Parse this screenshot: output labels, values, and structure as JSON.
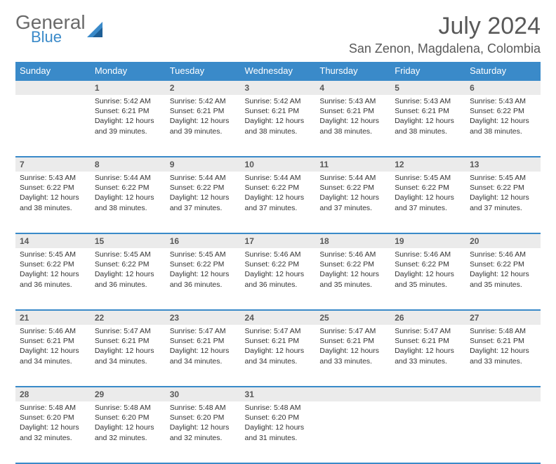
{
  "brand": {
    "line1": "General",
    "line2": "Blue"
  },
  "title": "July 2024",
  "location": "San Zenon, Magdalena, Colombia",
  "colors": {
    "accent": "#3a8ac9",
    "shade": "#ebebeb",
    "text": "#595959"
  },
  "weekdays": [
    "Sunday",
    "Monday",
    "Tuesday",
    "Wednesday",
    "Thursday",
    "Friday",
    "Saturday"
  ],
  "startOffset": 1,
  "days": [
    {
      "n": "1",
      "sunrise": "5:42 AM",
      "sunset": "6:21 PM",
      "dl": "12 hours and 39 minutes."
    },
    {
      "n": "2",
      "sunrise": "5:42 AM",
      "sunset": "6:21 PM",
      "dl": "12 hours and 39 minutes."
    },
    {
      "n": "3",
      "sunrise": "5:42 AM",
      "sunset": "6:21 PM",
      "dl": "12 hours and 38 minutes."
    },
    {
      "n": "4",
      "sunrise": "5:43 AM",
      "sunset": "6:21 PM",
      "dl": "12 hours and 38 minutes."
    },
    {
      "n": "5",
      "sunrise": "5:43 AM",
      "sunset": "6:21 PM",
      "dl": "12 hours and 38 minutes."
    },
    {
      "n": "6",
      "sunrise": "5:43 AM",
      "sunset": "6:22 PM",
      "dl": "12 hours and 38 minutes."
    },
    {
      "n": "7",
      "sunrise": "5:43 AM",
      "sunset": "6:22 PM",
      "dl": "12 hours and 38 minutes."
    },
    {
      "n": "8",
      "sunrise": "5:44 AM",
      "sunset": "6:22 PM",
      "dl": "12 hours and 38 minutes."
    },
    {
      "n": "9",
      "sunrise": "5:44 AM",
      "sunset": "6:22 PM",
      "dl": "12 hours and 37 minutes."
    },
    {
      "n": "10",
      "sunrise": "5:44 AM",
      "sunset": "6:22 PM",
      "dl": "12 hours and 37 minutes."
    },
    {
      "n": "11",
      "sunrise": "5:44 AM",
      "sunset": "6:22 PM",
      "dl": "12 hours and 37 minutes."
    },
    {
      "n": "12",
      "sunrise": "5:45 AM",
      "sunset": "6:22 PM",
      "dl": "12 hours and 37 minutes."
    },
    {
      "n": "13",
      "sunrise": "5:45 AM",
      "sunset": "6:22 PM",
      "dl": "12 hours and 37 minutes."
    },
    {
      "n": "14",
      "sunrise": "5:45 AM",
      "sunset": "6:22 PM",
      "dl": "12 hours and 36 minutes."
    },
    {
      "n": "15",
      "sunrise": "5:45 AM",
      "sunset": "6:22 PM",
      "dl": "12 hours and 36 minutes."
    },
    {
      "n": "16",
      "sunrise": "5:45 AM",
      "sunset": "6:22 PM",
      "dl": "12 hours and 36 minutes."
    },
    {
      "n": "17",
      "sunrise": "5:46 AM",
      "sunset": "6:22 PM",
      "dl": "12 hours and 36 minutes."
    },
    {
      "n": "18",
      "sunrise": "5:46 AM",
      "sunset": "6:22 PM",
      "dl": "12 hours and 35 minutes."
    },
    {
      "n": "19",
      "sunrise": "5:46 AM",
      "sunset": "6:22 PM",
      "dl": "12 hours and 35 minutes."
    },
    {
      "n": "20",
      "sunrise": "5:46 AM",
      "sunset": "6:22 PM",
      "dl": "12 hours and 35 minutes."
    },
    {
      "n": "21",
      "sunrise": "5:46 AM",
      "sunset": "6:21 PM",
      "dl": "12 hours and 34 minutes."
    },
    {
      "n": "22",
      "sunrise": "5:47 AM",
      "sunset": "6:21 PM",
      "dl": "12 hours and 34 minutes."
    },
    {
      "n": "23",
      "sunrise": "5:47 AM",
      "sunset": "6:21 PM",
      "dl": "12 hours and 34 minutes."
    },
    {
      "n": "24",
      "sunrise": "5:47 AM",
      "sunset": "6:21 PM",
      "dl": "12 hours and 34 minutes."
    },
    {
      "n": "25",
      "sunrise": "5:47 AM",
      "sunset": "6:21 PM",
      "dl": "12 hours and 33 minutes."
    },
    {
      "n": "26",
      "sunrise": "5:47 AM",
      "sunset": "6:21 PM",
      "dl": "12 hours and 33 minutes."
    },
    {
      "n": "27",
      "sunrise": "5:48 AM",
      "sunset": "6:21 PM",
      "dl": "12 hours and 33 minutes."
    },
    {
      "n": "28",
      "sunrise": "5:48 AM",
      "sunset": "6:20 PM",
      "dl": "12 hours and 32 minutes."
    },
    {
      "n": "29",
      "sunrise": "5:48 AM",
      "sunset": "6:20 PM",
      "dl": "12 hours and 32 minutes."
    },
    {
      "n": "30",
      "sunrise": "5:48 AM",
      "sunset": "6:20 PM",
      "dl": "12 hours and 32 minutes."
    },
    {
      "n": "31",
      "sunrise": "5:48 AM",
      "sunset": "6:20 PM",
      "dl": "12 hours and 31 minutes."
    }
  ],
  "labels": {
    "sunrise": "Sunrise:",
    "sunset": "Sunset:",
    "daylight": "Daylight:"
  }
}
